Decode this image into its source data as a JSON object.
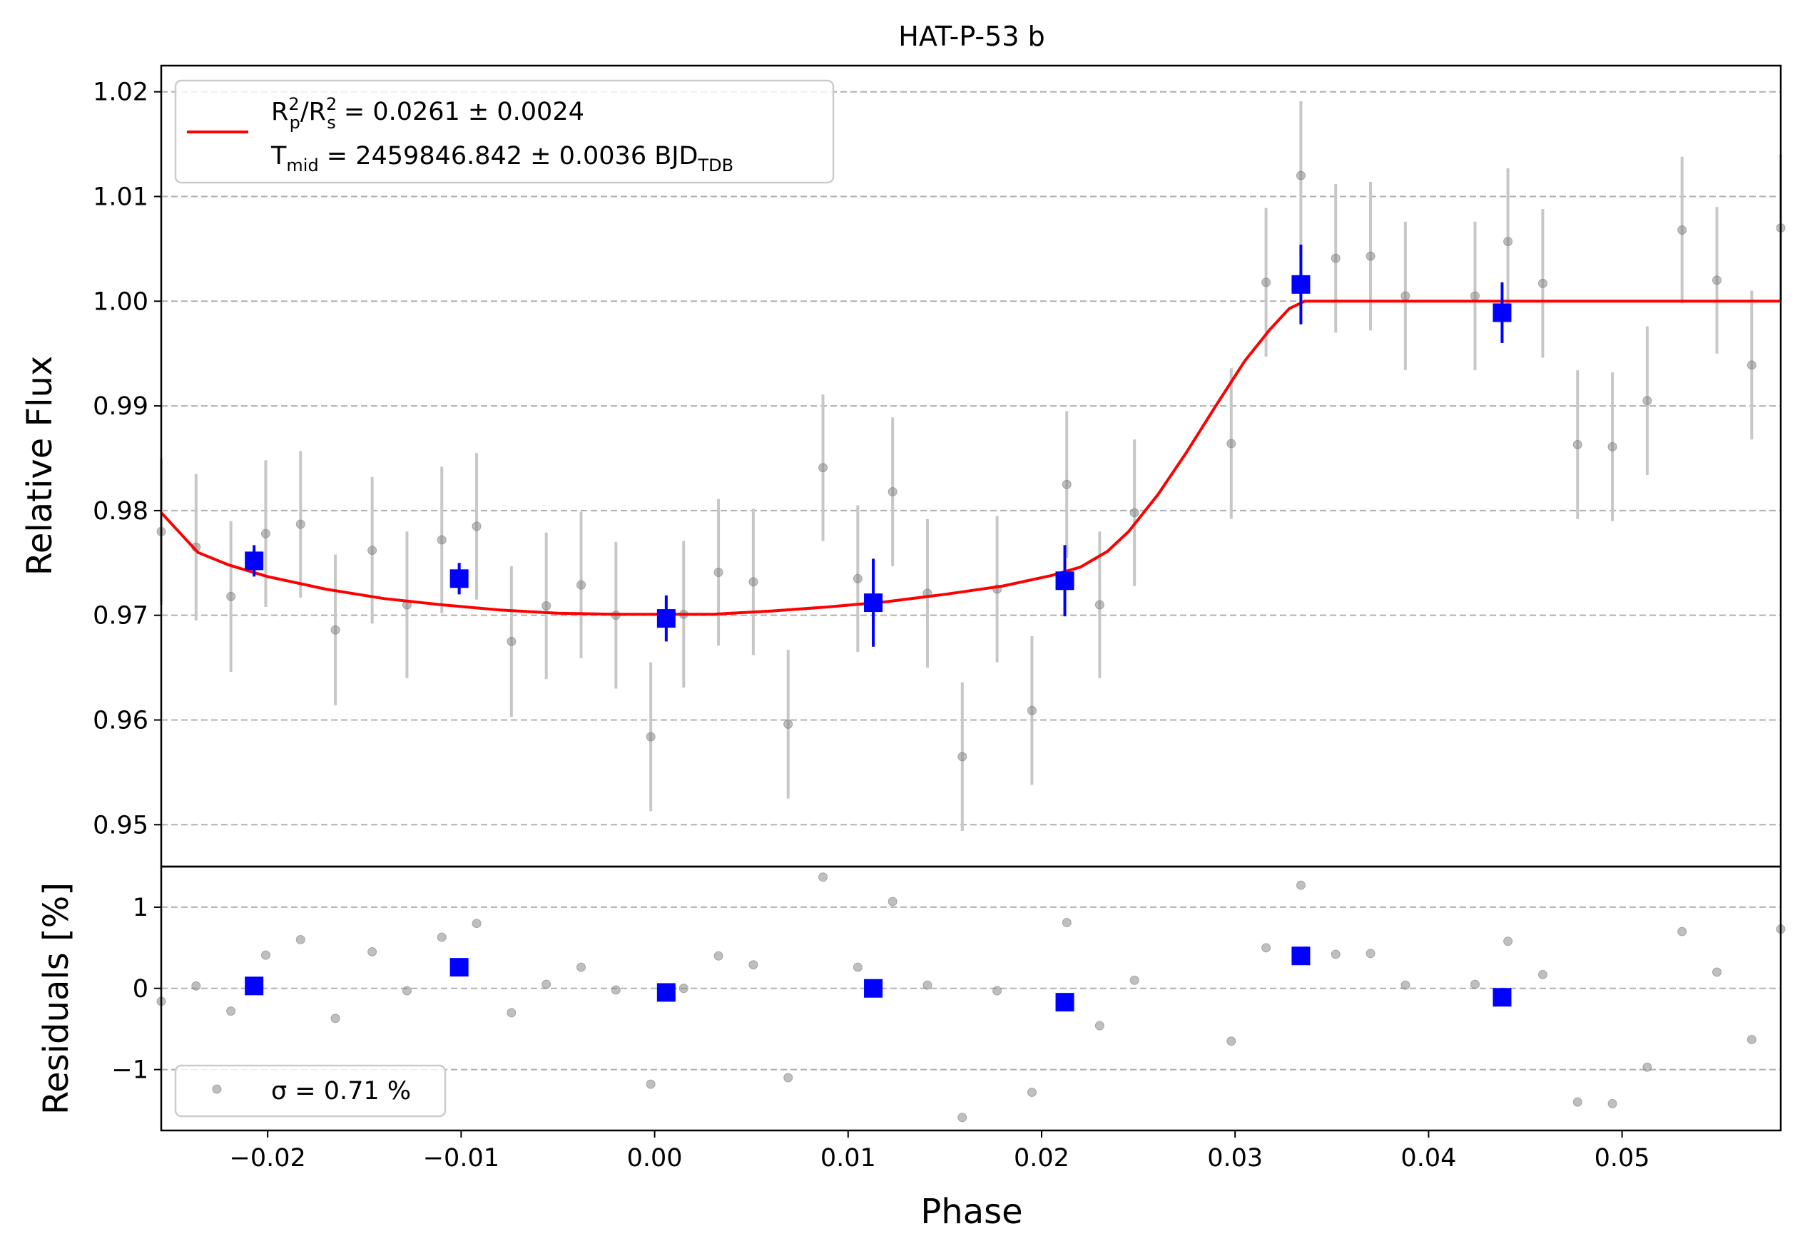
{
  "chart_data": {
    "type": "scatter",
    "title": "HAT-P-53 b",
    "xlabel": "Phase",
    "xlim": [
      -0.0255,
      0.0582
    ],
    "panels": {
      "flux": {
        "ylabel": "Relative Flux",
        "ylim": [
          0.946,
          1.0225
        ],
        "yticks": [
          0.95,
          0.96,
          0.97,
          0.98,
          0.99,
          1.0,
          1.01,
          1.02
        ],
        "ytick_labels": [
          "0.95",
          "0.96",
          "0.97",
          "0.98",
          "0.99",
          "1.00",
          "1.01",
          "1.02"
        ],
        "grid": "horizontal-dashed"
      },
      "residuals": {
        "ylabel": "Residuals [%]",
        "ylim": [
          -1.75,
          1.5
        ],
        "yticks": [
          -1,
          0,
          1
        ],
        "ytick_labels": [
          "−1",
          "0",
          "1"
        ],
        "grid": "horizontal-dashed"
      }
    },
    "xticks": [
      -0.02,
      -0.01,
      0.0,
      0.01,
      0.02,
      0.03,
      0.04,
      0.05
    ],
    "xtick_labels": [
      "−0.02",
      "−0.01",
      "0.00",
      "0.01",
      "0.02",
      "0.03",
      "0.04",
      "0.05"
    ],
    "legend": {
      "placement": "upper-left",
      "entries": [
        {
          "label": "R²p/R²s = 0.0261 ± 0.0024",
          "prefix": "R",
          "sup1": "2",
          "sub1": "p",
          "mid": "/R",
          "sup2": "2",
          "sub2": "s",
          "tail": " = 0.0261 ± 0.0024"
        },
        {
          "label": "Tmid = 2459846.842 ± 0.0036 BJDTDB",
          "prefix": "T",
          "sub1": "mid",
          "tail": " = 2459846.842 ± 0.0036 BJD",
          "sub2": "TDB"
        }
      ],
      "color": "#ff0000"
    },
    "residual_legend": {
      "placement": "lower-left",
      "label": "σ = 0.71 %"
    },
    "series": [
      {
        "kind": "data",
        "color": "#808080",
        "points": [
          {
            "x": -0.0255,
            "y": 0.978,
            "err": 0.007,
            "res": -0.16
          },
          {
            "x": -0.0237,
            "y": 0.9765,
            "err": 0.007,
            "res": 0.03
          },
          {
            "x": -0.0219,
            "y": 0.9718,
            "err": 0.0072,
            "res": -0.28
          },
          {
            "x": -0.0201,
            "y": 0.9778,
            "err": 0.007,
            "res": 0.41
          },
          {
            "x": -0.0183,
            "y": 0.9787,
            "err": 0.007,
            "res": 0.6
          },
          {
            "x": -0.0165,
            "y": 0.9686,
            "err": 0.0072,
            "res": -0.37
          },
          {
            "x": -0.0146,
            "y": 0.9762,
            "err": 0.007,
            "res": 0.45
          },
          {
            "x": -0.0128,
            "y": 0.971,
            "err": 0.007,
            "res": -0.03
          },
          {
            "x": -0.011,
            "y": 0.9772,
            "err": 0.007,
            "res": 0.63
          },
          {
            "x": -0.0092,
            "y": 0.9785,
            "err": 0.007,
            "res": 0.8
          },
          {
            "x": -0.0074,
            "y": 0.9675,
            "err": 0.0072,
            "res": -0.3
          },
          {
            "x": -0.0056,
            "y": 0.9709,
            "err": 0.007,
            "res": 0.05
          },
          {
            "x": -0.0038,
            "y": 0.9729,
            "err": 0.007,
            "res": 0.26
          },
          {
            "x": -0.002,
            "y": 0.97,
            "err": 0.007,
            "res": -0.02
          },
          {
            "x": -0.0002,
            "y": 0.9584,
            "err": 0.0071,
            "res": -1.18
          },
          {
            "x": 0.0015,
            "y": 0.9701,
            "err": 0.007,
            "res": 0.0
          },
          {
            "x": 0.0033,
            "y": 0.9741,
            "err": 0.007,
            "res": 0.4
          },
          {
            "x": 0.0051,
            "y": 0.9732,
            "err": 0.007,
            "res": 0.29
          },
          {
            "x": 0.0069,
            "y": 0.9596,
            "err": 0.0071,
            "res": -1.1
          },
          {
            "x": 0.0087,
            "y": 0.9841,
            "err": 0.007,
            "res": 1.37
          },
          {
            "x": 0.0105,
            "y": 0.9735,
            "err": 0.007,
            "res": 0.26
          },
          {
            "x": 0.0123,
            "y": 0.9818,
            "err": 0.0071,
            "res": 1.07
          },
          {
            "x": 0.0141,
            "y": 0.9721,
            "err": 0.0071,
            "res": 0.04
          },
          {
            "x": 0.0159,
            "y": 0.9565,
            "err": 0.0071,
            "res": -1.59
          },
          {
            "x": 0.0177,
            "y": 0.9725,
            "err": 0.007,
            "res": -0.03
          },
          {
            "x": 0.0195,
            "y": 0.9609,
            "err": 0.0071,
            "res": -1.28
          },
          {
            "x": 0.0213,
            "y": 0.9825,
            "err": 0.007,
            "res": 0.81
          },
          {
            "x": 0.023,
            "y": 0.971,
            "err": 0.007,
            "res": -0.46
          },
          {
            "x": 0.0248,
            "y": 0.9798,
            "err": 0.007,
            "res": 0.1
          },
          {
            "x": 0.0298,
            "y": 0.9864,
            "err": 0.0072,
            "res": -0.65
          },
          {
            "x": 0.0316,
            "y": 1.0018,
            "err": 0.0071,
            "res": 0.5
          },
          {
            "x": 0.0334,
            "y": 1.012,
            "err": 0.0071,
            "res": 1.27
          },
          {
            "x": 0.0352,
            "y": 1.0041,
            "err": 0.0071,
            "res": 0.42
          },
          {
            "x": 0.037,
            "y": 1.0043,
            "err": 0.0071,
            "res": 0.43
          },
          {
            "x": 0.0388,
            "y": 1.0005,
            "err": 0.0071,
            "res": 0.04
          },
          {
            "x": 0.0424,
            "y": 1.0005,
            "err": 0.0071,
            "res": 0.05
          },
          {
            "x": 0.0441,
            "y": 1.0057,
            "err": 0.007,
            "res": 0.58
          },
          {
            "x": 0.0459,
            "y": 1.0017,
            "err": 0.0071,
            "res": 0.17
          },
          {
            "x": 0.0477,
            "y": 0.9863,
            "err": 0.0071,
            "res": -1.4
          },
          {
            "x": 0.0495,
            "y": 0.9861,
            "err": 0.0071,
            "res": -1.42
          },
          {
            "x": 0.0513,
            "y": 0.9905,
            "err": 0.0071,
            "res": -0.97
          },
          {
            "x": 0.0531,
            "y": 1.0068,
            "err": 0.007,
            "res": 0.7
          },
          {
            "x": 0.0549,
            "y": 1.002,
            "err": 0.007,
            "res": 0.2
          },
          {
            "x": 0.0567,
            "y": 0.9939,
            "err": 0.0071,
            "res": -0.63
          },
          {
            "x": 0.0582,
            "y": 1.007,
            "err": 0.007,
            "res": 0.73
          }
        ]
      },
      {
        "kind": "binned",
        "color": "#0000ff",
        "points": [
          {
            "x": -0.0207,
            "y": 0.9752,
            "err": 0.0015,
            "res": 0.03
          },
          {
            "x": -0.0101,
            "y": 0.9735,
            "err": 0.0015,
            "res": 0.26
          },
          {
            "x": 0.0006,
            "y": 0.9697,
            "err": 0.0022,
            "res": -0.05
          },
          {
            "x": 0.0113,
            "y": 0.9712,
            "err": 0.0042,
            "res": 0.0
          },
          {
            "x": 0.0212,
            "y": 0.9733,
            "err": 0.0034,
            "res": -0.17
          },
          {
            "x": 0.0334,
            "y": 1.0016,
            "err": 0.0038,
            "res": 0.4
          },
          {
            "x": 0.0438,
            "y": 0.9989,
            "err": 0.0029,
            "res": -0.11
          }
        ]
      },
      {
        "kind": "model",
        "color": "#ff0000",
        "points": [
          {
            "x": -0.0255,
            "y": 0.9798
          },
          {
            "x": -0.0236,
            "y": 0.976
          },
          {
            "x": -0.022,
            "y": 0.9748
          },
          {
            "x": -0.02,
            "y": 0.9737
          },
          {
            "x": -0.017,
            "y": 0.9725
          },
          {
            "x": -0.014,
            "y": 0.9716
          },
          {
            "x": -0.011,
            "y": 0.971
          },
          {
            "x": -0.008,
            "y": 0.9705
          },
          {
            "x": -0.005,
            "y": 0.9702
          },
          {
            "x": -0.002,
            "y": 0.9701
          },
          {
            "x": 0.0,
            "y": 0.9701
          },
          {
            "x": 0.003,
            "y": 0.9701
          },
          {
            "x": 0.006,
            "y": 0.9704
          },
          {
            "x": 0.009,
            "y": 0.9708
          },
          {
            "x": 0.012,
            "y": 0.9713
          },
          {
            "x": 0.015,
            "y": 0.972
          },
          {
            "x": 0.018,
            "y": 0.9728
          },
          {
            "x": 0.0205,
            "y": 0.9738
          },
          {
            "x": 0.022,
            "y": 0.9746
          },
          {
            "x": 0.0234,
            "y": 0.9761
          },
          {
            "x": 0.0245,
            "y": 0.978
          },
          {
            "x": 0.026,
            "y": 0.9815
          },
          {
            "x": 0.0275,
            "y": 0.9856
          },
          {
            "x": 0.029,
            "y": 0.99
          },
          {
            "x": 0.0305,
            "y": 0.9943
          },
          {
            "x": 0.0318,
            "y": 0.9973
          },
          {
            "x": 0.0328,
            "y": 0.9993
          },
          {
            "x": 0.0336,
            "y": 1.0
          },
          {
            "x": 0.04,
            "y": 1.0
          },
          {
            "x": 0.05,
            "y": 1.0
          },
          {
            "x": 0.0582,
            "y": 1.0
          }
        ]
      }
    ]
  }
}
